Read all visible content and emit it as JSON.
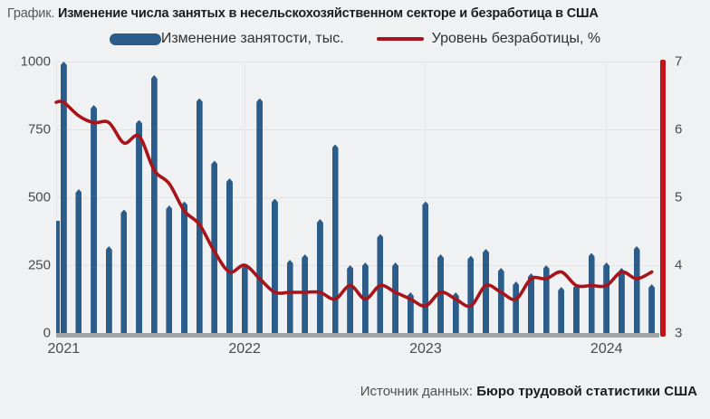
{
  "title": {
    "prefix": "График.",
    "main": "Изменение числа занятых в несельскохозяйственном секторе и безработица в США"
  },
  "legend": {
    "bars_label": "Изменение занятости, тыс.",
    "line_label": "Уровень безработицы, %"
  },
  "source": {
    "prefix": "Источник данных: ",
    "name": "Бюро трудовой статистики США"
  },
  "colors": {
    "bar_blue": "#2b5c8a",
    "line_red": "#a81419",
    "axis_bar_red": "#c2131a",
    "baseline_gray": "#a2a3a5",
    "background": "#f0f1f2"
  },
  "chart_data": {
    "type": "bar+line",
    "title": "Изменение числа занятых в несельскохозяйственном секторе и безработица в США",
    "x_unit": "month",
    "months": [
      "2021-01",
      "2021-02",
      "2021-03",
      "2021-04",
      "2021-05",
      "2021-06",
      "2021-07",
      "2021-08",
      "2021-09",
      "2021-10",
      "2021-11",
      "2021-12",
      "2022-01",
      "2022-02",
      "2022-03",
      "2022-04",
      "2022-05",
      "2022-06",
      "2022-07",
      "2022-08",
      "2022-09",
      "2022-10",
      "2022-11",
      "2022-12",
      "2023-01",
      "2023-02",
      "2023-03",
      "2023-04",
      "2023-05",
      "2023-06",
      "2023-07",
      "2023-08",
      "2023-09",
      "2023-10",
      "2023-11",
      "2023-12",
      "2024-01",
      "2024-02",
      "2024-03",
      "2024-04"
    ],
    "bars": {
      "name": "Изменение занятости, тыс.",
      "axis": "left",
      "color": "#2b5c8a",
      "values": [
        1000,
        530,
        840,
        320,
        455,
        785,
        950,
        470,
        485,
        865,
        635,
        570,
        250,
        865,
        495,
        270,
        290,
        420,
        695,
        250,
        260,
        365,
        260,
        150,
        485,
        290,
        150,
        285,
        310,
        240,
        190,
        220,
        250,
        170,
        180,
        295,
        260,
        240,
        320,
        180
      ]
    },
    "edge_partial_bar_value": 415,
    "line": {
      "name": "Уровень безработицы, %",
      "axis": "right",
      "color": "#a81419",
      "values": [
        6.4,
        6.2,
        6.1,
        6.1,
        5.8,
        5.9,
        5.4,
        5.2,
        4.8,
        4.6,
        4.2,
        3.9,
        4.0,
        3.8,
        3.6,
        3.6,
        3.6,
        3.6,
        3.5,
        3.7,
        3.5,
        3.7,
        3.6,
        3.5,
        3.4,
        3.6,
        3.5,
        3.4,
        3.7,
        3.6,
        3.5,
        3.8,
        3.8,
        3.9,
        3.7,
        3.7,
        3.7,
        3.9,
        3.8,
        3.9
      ]
    },
    "left_axis": {
      "ticks": [
        0,
        250,
        500,
        750,
        1000
      ],
      "range": [
        0,
        1000
      ]
    },
    "right_axis": {
      "ticks": [
        3,
        4,
        5,
        6,
        7
      ],
      "range": [
        3,
        7
      ]
    },
    "year_ticks": [
      {
        "label": "2021",
        "month_index": 0
      },
      {
        "label": "2022",
        "month_index": 12
      },
      {
        "label": "2023",
        "month_index": 24
      },
      {
        "label": "2024",
        "month_index": 36
      }
    ],
    "grid": "horizontal + year verticals",
    "legend_position": "top-center"
  }
}
